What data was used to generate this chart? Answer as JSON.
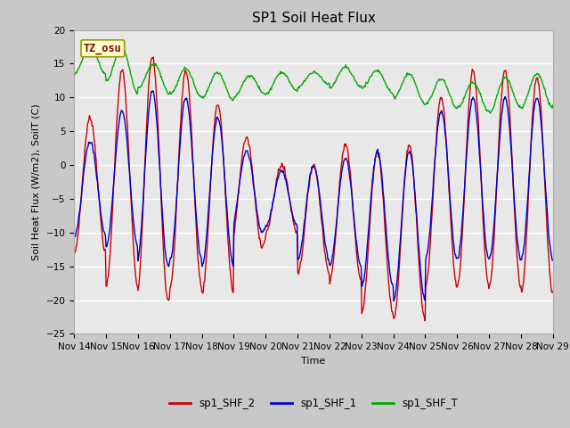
{
  "title": "SP1 Soil Heat Flux",
  "xlabel": "Time",
  "ylabel": "Soil Heat Flux (W/m2), SoilT (C)",
  "ylim": [
    -25,
    20
  ],
  "yticks": [
    -25,
    -20,
    -15,
    -10,
    -5,
    0,
    5,
    10,
    15,
    20
  ],
  "xtick_labels": [
    "Nov 14",
    "Nov 15",
    "Nov 16",
    "Nov 17",
    "Nov 18",
    "Nov 19",
    "Nov 20",
    "Nov 21",
    "Nov 22",
    "Nov 23",
    "Nov 24",
    "Nov 25",
    "Nov 26",
    "Nov 27",
    "Nov 28",
    "Nov 29"
  ],
  "legend_labels": [
    "sp1_SHF_2",
    "sp1_SHF_1",
    "sp1_SHF_T"
  ],
  "line_colors": [
    "#cc0000",
    "#0000cc",
    "#00aa00"
  ],
  "annotation_text": "TZ_osu",
  "annotation_color": "#880000",
  "annotation_bg": "#ffffcc",
  "annotation_border": "#999900",
  "fig_bg": "#c8c8c8",
  "plot_bg": "#e8e8e8",
  "grid_color": "#ffffff",
  "title_fontsize": 11,
  "axis_fontsize": 8,
  "tick_fontsize": 7.5
}
